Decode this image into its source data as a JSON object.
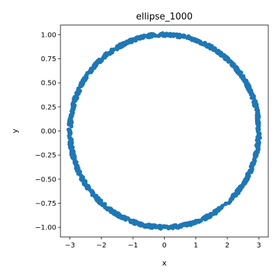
{
  "chart_data": {
    "type": "scatter",
    "title": "ellipse_1000",
    "xlabel": "x",
    "ylabel": "y",
    "xlim": [
      -3.3,
      3.3
    ],
    "ylim": [
      -1.1,
      1.1
    ],
    "xticks": [
      -3,
      -2,
      -1,
      0,
      1,
      2,
      3
    ],
    "xtick_labels": [
      "−3",
      "−2",
      "−1",
      "0",
      "1",
      "2",
      "3"
    ],
    "yticks": [
      -1.0,
      -0.75,
      -0.5,
      -0.25,
      0.0,
      0.25,
      0.5,
      0.75,
      1.0
    ],
    "ytick_labels": [
      "−1.00",
      "−0.75",
      "−0.50",
      "−0.25",
      "0.00",
      "0.25",
      "0.50",
      "0.75",
      "1.00"
    ],
    "grid": false,
    "series": [
      {
        "point_count": 1000,
        "shape": "ellipse",
        "center": [
          0,
          0
        ],
        "semi_axis_x": 3,
        "semi_axis_y": 1,
        "color": "#1f77b4"
      }
    ]
  }
}
